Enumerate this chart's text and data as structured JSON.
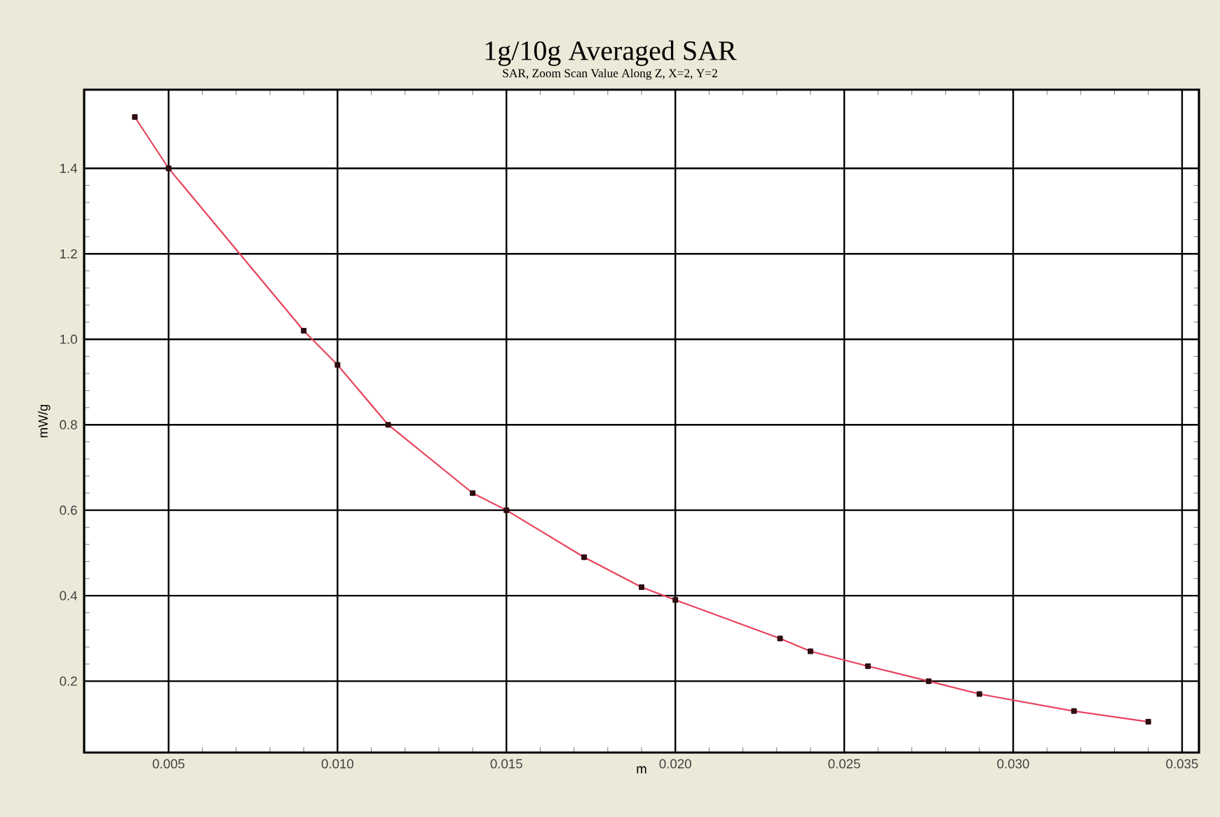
{
  "chart_data": {
    "type": "line",
    "title": "1g/10g Averaged SAR",
    "subtitle": "SAR, Zoom Scan Value Along Z, X=2, Y=2",
    "xlabel": "m",
    "ylabel": "mW/g",
    "series": [
      {
        "color": "#e8405a",
        "x": [
          0.004,
          0.005,
          0.009,
          0.01,
          0.0115,
          0.014,
          0.015,
          0.0173,
          0.019,
          0.02,
          0.0231,
          0.024,
          0.0257,
          0.0275,
          0.029,
          0.0318,
          0.034
        ],
        "values": [
          1.52,
          1.4,
          1.02,
          0.94,
          0.8,
          0.64,
          0.6,
          0.49,
          0.42,
          0.39,
          0.3,
          0.27,
          0.235,
          0.2,
          0.17,
          0.13,
          0.105
        ]
      }
    ],
    "xlim": [
      0.0025,
      0.0355
    ],
    "ylim": [
      0.033,
      1.584
    ],
    "xticks": [
      0.005,
      {
        "value": 0.01,
        "label": "0.010"
      },
      0.015,
      {
        "value": 0.02,
        "label": "0.020"
      },
      0.025,
      {
        "value": 0.03,
        "label": "0.030"
      },
      0.035
    ],
    "yticks": [
      0.2,
      0.4,
      0.6,
      0.8,
      {
        "value": 1,
        "label": "1.0"
      },
      1.2,
      1.4
    ],
    "grid": true,
    "marker": "square",
    "line_style": "solid"
  }
}
